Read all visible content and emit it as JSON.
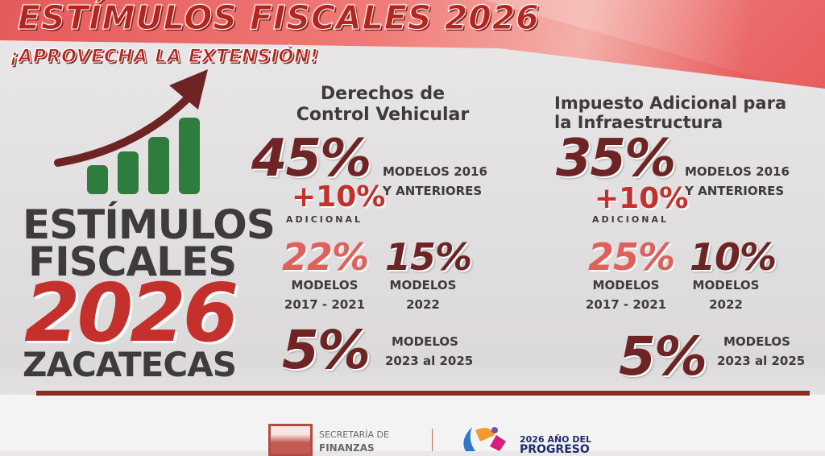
{
  "header": {
    "title": "ESTÍMULOS FISCALES 2026",
    "subtitle": "¡APROVECHA LA EXTENSIÓN!"
  },
  "left": {
    "line1": "ESTÍMULOS",
    "line2": "FISCALES",
    "year": "2026",
    "state": "ZACATECAS"
  },
  "columns": [
    {
      "heading1": "Derechos de",
      "heading2": "Control Vehicular",
      "main": "45%",
      "plus": "+10%",
      "adicional": "ADICIONAL",
      "main_models1": "MODELOS 2016",
      "main_models2": "Y ANTERIORES",
      "b": "22%",
      "b_l1": "MODELOS",
      "b_l2": "2017 - 2021",
      "c": "15%",
      "c_l1": "MODELOS",
      "c_l2": "2022",
      "d": "5%",
      "d_l1": "MODELOS",
      "d_l2": "2023 al 2025"
    },
    {
      "heading1": "Impuesto Adicional para",
      "heading2": "la Infraestructura",
      "main": "35%",
      "plus": "+10%",
      "adicional": "ADICIONAL",
      "main_models1": "MODELOS 2016",
      "main_models2": "Y ANTERIORES",
      "b": "25%",
      "b_l1": "MODELOS",
      "b_l2": "2017 - 2021",
      "c": "10%",
      "c_l1": "MODELOS",
      "c_l2": "2022",
      "d": "5%",
      "d_l1": "MODELOS",
      "d_l2": "2023 al 2025"
    }
  ],
  "footer": {
    "sec1": "SECRETARÍA DE",
    "sec2": "FINANZAS",
    "motto": "2026 AÑO DEL",
    "motto2": "PROGRESO"
  },
  "colors": {
    "maroon": "#6e2424",
    "red": "#c4302b",
    "green": "#2e7d3e",
    "band": "#e55a5a"
  }
}
